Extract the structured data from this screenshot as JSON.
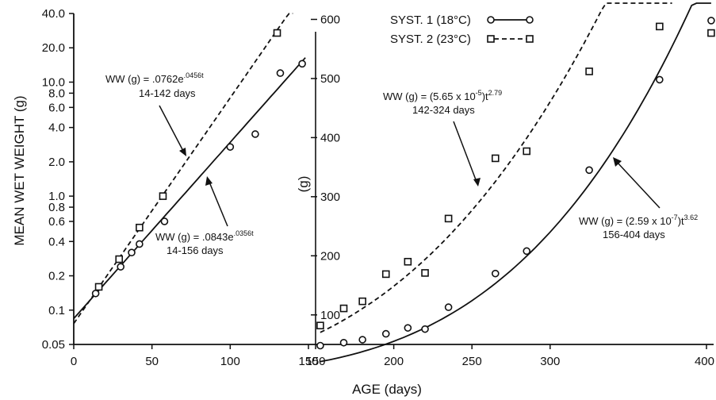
{
  "chart_data": [
    {
      "type": "scatter",
      "panel": "left",
      "yscale": "log",
      "ylabel": "MEAN WET WEIGHT (g)",
      "xlim": [
        0,
        150
      ],
      "ylim": [
        0.05,
        40.0
      ],
      "xticks": [
        0,
        50,
        100,
        150
      ],
      "xtick_labels": [
        "0",
        "50",
        "100",
        "150"
      ],
      "yticks": [
        0.05,
        0.1,
        0.2,
        0.4,
        0.6,
        0.8,
        1.0,
        2.0,
        4.0,
        6.0,
        8.0,
        10.0,
        20.0,
        40.0
      ],
      "ytick_labels": [
        "0.05",
        "0.1",
        "0.2",
        "0.4",
        "0.6",
        "0.8",
        "1.0",
        "2.0",
        "4.0",
        "6.0",
        "8.0",
        "10.0",
        "20.0",
        "40.0"
      ],
      "series": [
        {
          "name": "SYST. 1 (18°C)",
          "marker": "circle",
          "x": [
            14,
            30,
            37,
            42,
            58,
            100,
            116,
            132,
            146
          ],
          "y": [
            0.14,
            0.24,
            0.32,
            0.38,
            0.6,
            2.7,
            3.5,
            12.0,
            14.5
          ],
          "fit": {
            "a": 0.0843,
            "b": 0.0356,
            "x_start": 0,
            "x_end": 148,
            "style": "solid"
          }
        },
        {
          "name": "SYST. 2 (23°C)",
          "marker": "square",
          "x": [
            16,
            29,
            42,
            57,
            130
          ],
          "y": [
            0.16,
            0.28,
            0.53,
            1.0,
            27.0
          ],
          "fit": {
            "a": 0.0762,
            "b": 0.0456,
            "x_start": 0,
            "x_end": 140,
            "style": "dashed"
          }
        }
      ],
      "annotations": [
        {
          "equation": "WW (g) = .0762e",
          "exponent": ".0456t",
          "range": "14-142 days"
        },
        {
          "equation": "WW (g) = .0843e",
          "exponent": ".0356t",
          "range": "14-156 days"
        }
      ]
    },
    {
      "type": "scatter",
      "panel": "right",
      "xlabel": "AGE (days)",
      "ylabel": "(g)",
      "xlim": [
        150,
        400
      ],
      "ylim": [
        50,
        610
      ],
      "xticks": [
        150,
        200,
        250,
        300,
        400
      ],
      "xtick_labels": [
        "150",
        "200",
        "250",
        "300",
        "400"
      ],
      "yticks": [
        100,
        200,
        300,
        400,
        500,
        600
      ],
      "ytick_labels": [
        "100",
        "200",
        "300",
        "400",
        "500",
        "600"
      ],
      "series": [
        {
          "name": "SYST. 1 (18°C)",
          "marker": "circle",
          "x": [
            153,
            168,
            180,
            195,
            209,
            220,
            235,
            265,
            285,
            325,
            370,
            403
          ],
          "y": [
            48,
            53,
            58,
            68,
            78,
            76,
            113,
            170,
            208,
            345,
            498,
            598
          ],
          "fit": {
            "a": 2.59e-07,
            "b": 3.62,
            "x_start": 153,
            "x_end": 403,
            "style": "solid"
          }
        },
        {
          "name": "SYST. 2 (23°C)",
          "marker": "square",
          "x": [
            153,
            168,
            180,
            195,
            209,
            220,
            235,
            265,
            285,
            325,
            370,
            403
          ],
          "y": [
            82,
            111,
            123,
            169,
            190,
            171,
            263,
            365,
            377,
            512,
            588,
            577
          ],
          "fit": {
            "a": 5.65e-05,
            "b": 2.79,
            "x_start": 153,
            "x_end": 378,
            "style": "dashed"
          }
        }
      ],
      "annotations": [
        {
          "equation": "WW (g) = (5.65 x 10",
          "exponent": "-5",
          "suffix": ")t",
          "power": "2.79",
          "range": "142-324 days"
        },
        {
          "equation": "WW (g) = (2.59 x 10",
          "exponent": "-7",
          "suffix": ")t",
          "power": "3.62",
          "range": "156-404 days"
        }
      ]
    }
  ],
  "legend": {
    "placement": "top-right",
    "entries": [
      {
        "label": "SYST. 1 (18°C)",
        "marker": "circle",
        "style": "solid"
      },
      {
        "label": "SYST. 2 (23°C)",
        "marker": "square",
        "style": "dashed"
      }
    ]
  }
}
